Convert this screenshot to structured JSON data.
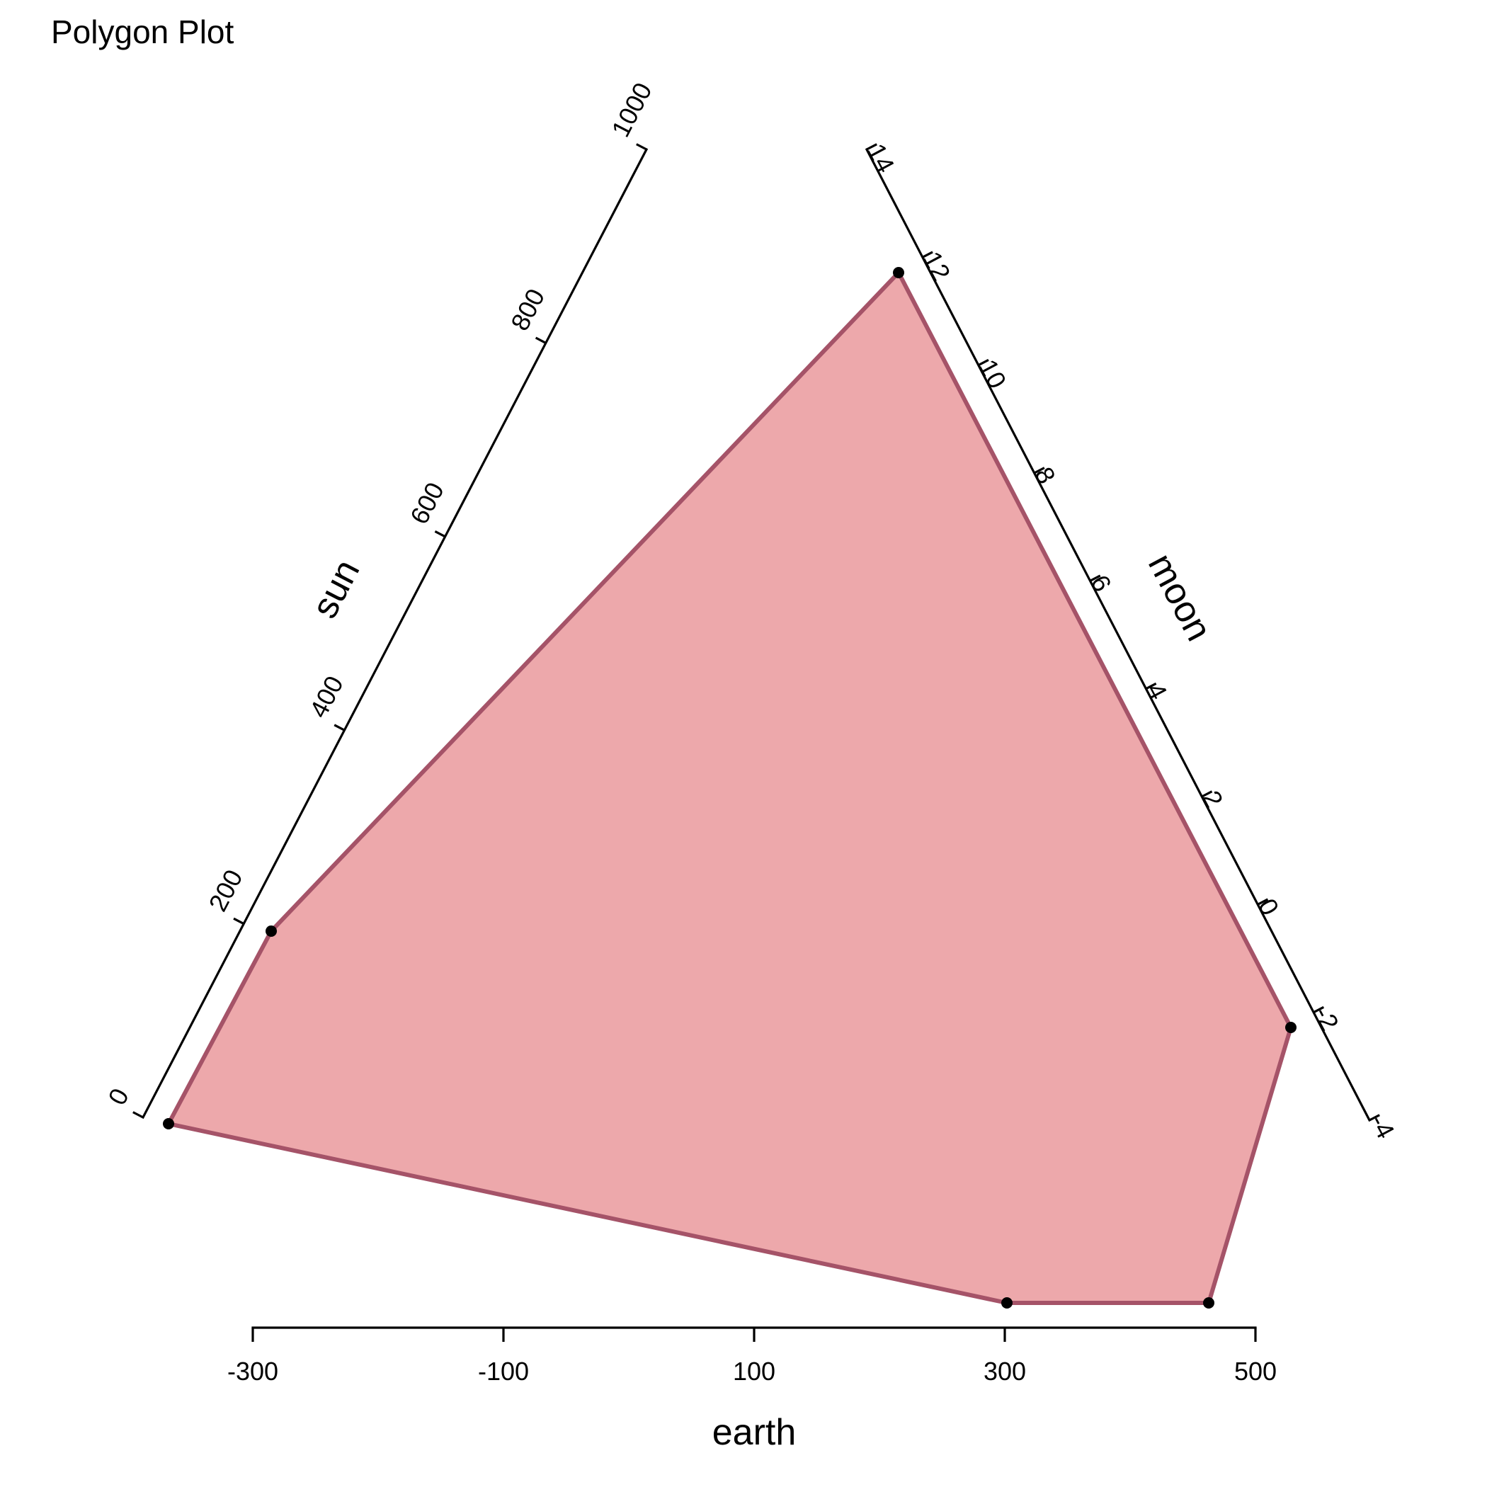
{
  "chart_data": {
    "type": "polygon",
    "title": "Polygon Plot",
    "axes": [
      {
        "key": "earth",
        "label": "earth",
        "range": [
          -300,
          500
        ],
        "ticks": [
          -300,
          -100,
          100,
          300,
          500
        ]
      },
      {
        "key": "sun",
        "label": "sun",
        "range": [
          0,
          1000
        ],
        "ticks": [
          0,
          200,
          400,
          600,
          800,
          1000
        ]
      },
      {
        "key": "moon",
        "label": "moon",
        "range": [
          -4,
          14
        ],
        "ticks": [
          -4,
          -2,
          0,
          2,
          4,
          6,
          8,
          10,
          12,
          14
        ]
      }
    ],
    "vertices": [
      {
        "earth": -366,
        "sun": 0,
        "moon": 12.2
      },
      {
        "earth": 300,
        "sun": 213,
        "moon": 0.6
      },
      {
        "earth": 460,
        "sun": 213,
        "moon": -1.8
      },
      {
        "earth": 300,
        "sun": 201,
        "moon": 12.2
      },
      {
        "earth": -366,
        "sun": 0,
        "moon": 0.6
      },
      {
        "earth": 460,
        "sun": 213,
        "moon": 0.6
      },
      {
        "earth": 300,
        "sun": 201,
        "moon": -1.8
      }
    ],
    "fill_color": "#eda8ab",
    "line_color": "#a55368",
    "point_color": "#000000",
    "grid": false,
    "legend": "none"
  }
}
